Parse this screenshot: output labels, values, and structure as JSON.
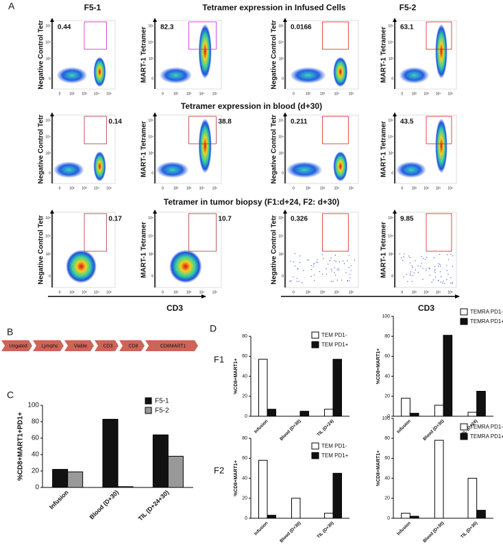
{
  "panel_labels": [
    "A",
    "B",
    "C",
    "D"
  ],
  "panel_a": {
    "title_left": "F5-1",
    "title_right": "F5-2",
    "row_titles": [
      "Tetramer expression in Infused Cells",
      "Tetramer expression in blood (d+30)",
      "Tetramer in tumor biopsy (F1:d+24, F2: d+30)"
    ],
    "y_tick_labels": [
      "10⁵",
      "10⁴",
      "10³",
      "0"
    ],
    "x_tick_labels": [
      "0",
      "10²",
      "10³",
      "10⁴",
      "10⁵"
    ],
    "xlabel_left": "CD3",
    "xlabel_right": "CD3",
    "plots": [
      {
        "ylabel": "Negative Control Tetr",
        "gate": "0.44",
        "gate_color": "#d020c8"
      },
      {
        "ylabel": "MART-1 Tetramer",
        "gate": "82.3",
        "gate_color": "#d020c8"
      },
      {
        "ylabel": "Negative Control Tetr",
        "gate": "0.0166",
        "gate_color": "#e01818"
      },
      {
        "ylabel": "MART-1 Tetramer",
        "gate": "63.1",
        "gate_color": "#e01818"
      },
      {
        "ylabel": "Negative Control Tetr",
        "gate": "0.14",
        "gate_color": "#111111"
      },
      {
        "ylabel": "MART-1 Tetramer",
        "gate": "38.8",
        "gate_color": "#111111"
      },
      {
        "ylabel": "Negative Control Tetr",
        "gate": "0.211",
        "gate_color": "#e01818"
      },
      {
        "ylabel": "MART-1 Tetramer",
        "gate": "43.5",
        "gate_color": "#e01818"
      },
      {
        "ylabel": "Negative Control Tetr",
        "gate": "0.17",
        "gate_color": "#111111"
      },
      {
        "ylabel": "MART-1 Tetramer",
        "gate": "10.7",
        "gate_color": "#111111"
      },
      {
        "ylabel": "Negative Control Tetr",
        "gate": "0.326",
        "gate_color": "#e01818"
      },
      {
        "ylabel": "MART-1 Tetramer",
        "gate": "9.85",
        "gate_color": "#e01818"
      }
    ]
  },
  "panel_b": {
    "steps": [
      "Ungated",
      "Lymphs",
      "Viable",
      "CD3",
      "CD8",
      "CD8MART1"
    ],
    "color": "#cd6458"
  },
  "panel_d": {
    "row_labels": [
      "F1",
      "F2"
    ]
  },
  "chart_data": [
    {
      "type": "bar",
      "ylabel": "%CD8+MART1+PD1+",
      "categories": [
        "Infusion",
        "Blood (D+30)",
        "TIL (D+24+30)"
      ],
      "series": [
        {
          "name": "F5-1",
          "color": "#111111",
          "values": [
            22,
            83,
            64
          ]
        },
        {
          "name": "F5-2",
          "color": "#999999",
          "values": [
            19,
            1,
            38
          ]
        }
      ],
      "ylim": [
        0,
        100
      ],
      "yticks": [
        0,
        20,
        40,
        60,
        80,
        100
      ]
    },
    {
      "type": "bar",
      "ylabel": "%CD8+MART1+",
      "categories": [
        "Infusion",
        "Blood (D+30)",
        "TIL (D+24)"
      ],
      "series": [
        {
          "name": "TEM PD1-",
          "color": "#ffffff",
          "values": [
            57,
            0,
            7
          ]
        },
        {
          "name": "TEM PD1+",
          "color": "#111111",
          "values": [
            7,
            5,
            57
          ]
        }
      ],
      "ylim": [
        0,
        80
      ],
      "yticks": [
        0,
        20,
        40,
        60,
        80
      ]
    },
    {
      "type": "bar",
      "ylabel": "%CD8+MART1+",
      "categories": [
        "Infusion",
        "Blood (D+30)",
        "TIL (D+24)"
      ],
      "series": [
        {
          "name": "TEMRA PD1-",
          "color": "#ffffff",
          "values": [
            18,
            11,
            4
          ]
        },
        {
          "name": "TEMRA PD1+",
          "color": "#111111",
          "values": [
            3,
            81,
            25
          ]
        }
      ],
      "ylim": [
        0,
        100
      ],
      "yticks": [
        0,
        20,
        40,
        60,
        80,
        100
      ]
    },
    {
      "type": "bar",
      "ylabel": "%CD8+MART1+",
      "categories": [
        "Infusion",
        "Blood (D+30)",
        "TIL (D+30)"
      ],
      "series": [
        {
          "name": "TEM PD1-",
          "color": "#ffffff",
          "values": [
            58,
            20,
            5
          ]
        },
        {
          "name": "TEM PD1+",
          "color": "#111111",
          "values": [
            3,
            0,
            45
          ]
        }
      ],
      "ylim": [
        0,
        80
      ],
      "yticks": [
        0,
        20,
        40,
        60,
        80
      ]
    },
    {
      "type": "bar",
      "ylabel": "%CD8+MART1+",
      "categories": [
        "Infusion",
        "Blood (D+30)",
        "TIL (D+30)"
      ],
      "series": [
        {
          "name": "TEMRA PD1-",
          "color": "#ffffff",
          "values": [
            5,
            78,
            40
          ]
        },
        {
          "name": "TEMRA PD1+",
          "color": "#111111",
          "values": [
            2,
            0,
            8
          ]
        }
      ],
      "ylim": [
        0,
        100
      ],
      "yticks": [
        0,
        20,
        40,
        60,
        80,
        100
      ]
    }
  ]
}
